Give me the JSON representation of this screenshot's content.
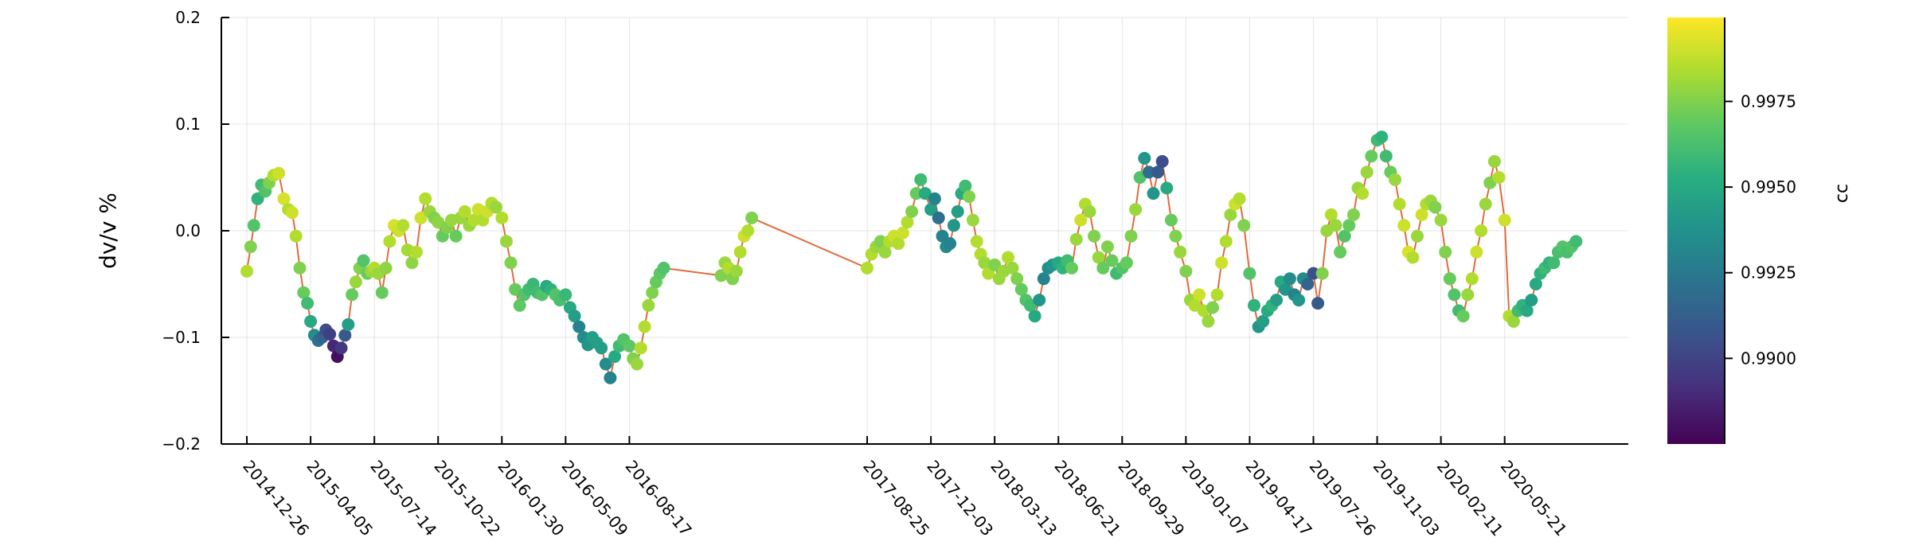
{
  "chart_data": {
    "type": "scatter",
    "ylabel": "dv/v %",
    "ylim": [
      -0.2,
      0.2
    ],
    "yticks": [
      -0.2,
      -0.1,
      0.0,
      0.1,
      0.2
    ],
    "ytick_labels": [
      "−0.2",
      "−0.1",
      "0.0",
      "0.1",
      "0.2"
    ],
    "xlim": [
      "2014-11-16",
      "2020-12-01"
    ],
    "xticks": [
      "2014-12-26",
      "2015-04-05",
      "2015-07-14",
      "2015-10-22",
      "2016-01-30",
      "2016-05-09",
      "2016-08-17",
      "2017-08-25",
      "2017-12-03",
      "2018-03-13",
      "2018-06-21",
      "2018-09-29",
      "2019-01-07",
      "2019-04-17",
      "2019-07-26",
      "2019-11-03",
      "2020-02-11",
      "2020-05-21"
    ],
    "grid": true,
    "line_color": "#e26a3b",
    "colormap": "viridis",
    "colorbar": {
      "label": "cc",
      "range": [
        0.9875,
        0.99995
      ],
      "ticks": [
        0.99,
        0.9925,
        0.995,
        0.9975
      ],
      "tick_labels": [
        "0.9900",
        "0.9925",
        "0.9950",
        "0.9975"
      ]
    },
    "series": [
      {
        "x": [
          "2014-12-26",
          "2015-01-01",
          "2015-01-06",
          "2015-01-12",
          "2015-01-18",
          "2015-01-24",
          "2015-01-30",
          "2015-02-06",
          "2015-02-14",
          "2015-02-22",
          "2015-03-01",
          "2015-03-07",
          "2015-03-13",
          "2015-03-19",
          "2015-03-25",
          "2015-03-31",
          "2015-04-05",
          "2015-04-11",
          "2015-04-17",
          "2015-04-23",
          "2015-04-29",
          "2015-05-05",
          "2015-05-11",
          "2015-05-17",
          "2015-05-23",
          "2015-05-29",
          "2015-06-03",
          "2015-06-09",
          "2015-06-15",
          "2015-06-21",
          "2015-06-27",
          "2015-07-03",
          "2015-07-09",
          "2015-07-14",
          "2015-07-20",
          "2015-07-26",
          "2015-08-01",
          "2015-08-07",
          "2015-08-14",
          "2015-08-21",
          "2015-08-28",
          "2015-09-04",
          "2015-09-11",
          "2015-09-18",
          "2015-09-25",
          "2015-10-02",
          "2015-10-09",
          "2015-10-16",
          "2015-10-22",
          "2015-10-29",
          "2015-11-05",
          "2015-11-12",
          "2015-11-19",
          "2015-11-26",
          "2015-12-03",
          "2015-12-10",
          "2015-12-17",
          "2015-12-24",
          "2015-12-31",
          "2016-01-07",
          "2016-01-14",
          "2016-01-21",
          "2016-01-30",
          "2016-02-06",
          "2016-02-13",
          "2016-02-20",
          "2016-02-27",
          "2016-03-05",
          "2016-03-12",
          "2016-03-19",
          "2016-03-26",
          "2016-04-02",
          "2016-04-09",
          "2016-04-16",
          "2016-04-23",
          "2016-04-30",
          "2016-05-09",
          "2016-05-16",
          "2016-05-23",
          "2016-05-30",
          "2016-06-06",
          "2016-06-13",
          "2016-06-20",
          "2016-06-27",
          "2016-07-04",
          "2016-07-11",
          "2016-07-18",
          "2016-07-25",
          "2016-08-01",
          "2016-08-08",
          "2016-08-17",
          "2016-08-23",
          "2016-08-29",
          "2016-09-04",
          "2016-09-10",
          "2016-09-16",
          "2016-09-22",
          "2016-09-28",
          "2016-10-04",
          "2016-10-10"
        ],
        "y": [
          -0.038,
          -0.015,
          0.005,
          0.03,
          0.043,
          0.037,
          0.045,
          0.052,
          0.054,
          0.03,
          0.02,
          0.017,
          -0.005,
          -0.035,
          -0.058,
          -0.068,
          -0.085,
          -0.098,
          -0.103,
          -0.1,
          -0.093,
          -0.097,
          -0.108,
          -0.118,
          -0.11,
          -0.098,
          -0.088,
          -0.06,
          -0.048,
          -0.035,
          -0.028,
          -0.04,
          -0.038,
          -0.035,
          -0.04,
          -0.058,
          -0.035,
          -0.01,
          0.005,
          0.0,
          0.005,
          -0.018,
          -0.03,
          -0.02,
          0.012,
          0.03,
          0.018,
          0.012,
          0.008,
          -0.005,
          0.003,
          0.01,
          -0.005,
          0.012,
          0.018,
          0.005,
          0.01,
          0.02,
          0.01,
          0.018,
          0.026,
          0.022,
          0.012,
          -0.01,
          -0.03,
          -0.055,
          -0.07,
          -0.06,
          -0.055,
          -0.05,
          -0.058,
          -0.06,
          -0.052,
          -0.055,
          -0.06,
          -0.065,
          -0.06,
          -0.072,
          -0.08,
          -0.09,
          -0.1,
          -0.107,
          -0.1,
          -0.105,
          -0.11,
          -0.125,
          -0.138,
          -0.118,
          -0.108,
          -0.102,
          -0.108,
          -0.12,
          -0.125,
          -0.11,
          -0.09,
          -0.07,
          -0.058,
          -0.048,
          -0.04,
          -0.035
        ],
        "cc": [
          0.9985,
          0.9975,
          0.9965,
          0.9955,
          0.996,
          0.9965,
          0.9975,
          0.9985,
          0.999,
          0.9992,
          0.9985,
          0.999,
          0.9985,
          0.9975,
          0.997,
          0.996,
          0.995,
          0.9935,
          0.992,
          0.9915,
          0.9905,
          0.9898,
          0.9888,
          0.988,
          0.9895,
          0.991,
          0.9945,
          0.997,
          0.998,
          0.9975,
          0.9965,
          0.997,
          0.998,
          0.9985,
          0.998,
          0.997,
          0.9978,
          0.9985,
          0.9992,
          0.999,
          0.9985,
          0.9982,
          0.9978,
          0.9985,
          0.999,
          0.9985,
          0.998,
          0.9975,
          0.9978,
          0.997,
          0.9975,
          0.998,
          0.997,
          0.998,
          0.9985,
          0.998,
          0.9985,
          0.999,
          0.9985,
          0.999,
          0.9985,
          0.998,
          0.9985,
          0.998,
          0.9975,
          0.997,
          0.9968,
          0.9965,
          0.996,
          0.9958,
          0.996,
          0.9965,
          0.995,
          0.9955,
          0.9965,
          0.9962,
          0.9958,
          0.995,
          0.9945,
          0.993,
          0.9935,
          0.994,
          0.9945,
          0.9945,
          0.9945,
          0.9935,
          0.993,
          0.995,
          0.996,
          0.9965,
          0.9968,
          0.9975,
          0.998,
          0.9985,
          0.9985,
          0.998,
          0.9975,
          0.997,
          0.9968,
          0.9965
        ]
      },
      {
        "x": [
          "2017-01-08",
          "2017-01-14",
          "2017-01-20",
          "2017-01-26",
          "2017-02-01",
          "2017-02-07",
          "2017-02-13",
          "2017-02-19",
          "2017-02-25"
        ],
        "y": [
          -0.042,
          -0.03,
          -0.035,
          -0.045,
          -0.038,
          -0.02,
          -0.005,
          0.0,
          0.012
        ],
        "cc": [
          0.9975,
          0.998,
          0.9985,
          0.9975,
          0.998,
          0.9985,
          0.999,
          0.9985,
          0.9975
        ]
      },
      {
        "x": [
          "2017-08-25",
          "2017-09-01",
          "2017-09-08",
          "2017-09-15",
          "2017-09-22",
          "2017-09-29",
          "2017-10-06",
          "2017-10-13",
          "2017-10-20",
          "2017-10-27",
          "2017-11-03",
          "2017-11-10",
          "2017-11-17",
          "2017-11-24",
          "2017-12-03",
          "2017-12-09",
          "2017-12-15",
          "2017-12-21",
          "2017-12-27",
          "2018-01-02",
          "2018-01-08",
          "2018-01-14",
          "2018-01-20",
          "2018-01-26",
          "2018-02-01",
          "2018-02-07",
          "2018-02-13",
          "2018-02-19",
          "2018-02-25",
          "2018-03-03",
          "2018-03-13",
          "2018-03-20",
          "2018-03-27",
          "2018-04-03",
          "2018-04-10",
          "2018-04-17",
          "2018-04-24",
          "2018-05-01",
          "2018-05-08",
          "2018-05-15",
          "2018-05-22",
          "2018-05-29",
          "2018-06-05",
          "2018-06-12",
          "2018-06-21",
          "2018-06-28",
          "2018-07-05",
          "2018-07-12",
          "2018-07-19",
          "2018-07-26",
          "2018-08-02",
          "2018-08-09",
          "2018-08-16",
          "2018-08-23",
          "2018-08-30",
          "2018-09-06",
          "2018-09-13",
          "2018-09-20",
          "2018-09-29",
          "2018-10-06",
          "2018-10-13",
          "2018-10-20",
          "2018-10-27",
          "2018-11-03",
          "2018-11-10",
          "2018-11-17",
          "2018-11-24",
          "2018-12-01",
          "2018-12-08",
          "2018-12-15",
          "2018-12-22",
          "2018-12-29",
          "2019-01-07",
          "2019-01-14",
          "2019-01-21",
          "2019-01-28",
          "2019-02-04",
          "2019-02-11",
          "2019-02-18",
          "2019-02-25",
          "2019-03-04",
          "2019-03-11",
          "2019-03-18",
          "2019-03-25",
          "2019-04-01",
          "2019-04-08",
          "2019-04-17",
          "2019-04-24",
          "2019-05-01",
          "2019-05-08",
          "2019-05-15",
          "2019-05-22",
          "2019-05-29",
          "2019-06-05",
          "2019-06-12",
          "2019-06-19",
          "2019-06-26",
          "2019-07-03",
          "2019-07-10",
          "2019-07-17",
          "2019-07-26",
          "2019-08-02",
          "2019-08-09",
          "2019-08-16",
          "2019-08-23",
          "2019-08-30",
          "2019-09-06",
          "2019-09-13",
          "2019-09-20",
          "2019-09-27",
          "2019-10-04",
          "2019-10-11",
          "2019-10-18",
          "2019-10-25",
          "2019-11-03",
          "2019-11-10",
          "2019-11-17",
          "2019-11-24",
          "2019-12-01",
          "2019-12-08",
          "2019-12-15",
          "2019-12-22",
          "2019-12-29",
          "2020-01-05",
          "2020-01-12",
          "2020-01-19",
          "2020-01-26",
          "2020-02-02",
          "2020-02-11",
          "2020-02-18",
          "2020-02-25",
          "2020-03-03",
          "2020-03-10",
          "2020-03-17",
          "2020-03-24",
          "2020-03-31",
          "2020-04-07",
          "2020-04-14",
          "2020-04-21",
          "2020-04-28",
          "2020-05-05",
          "2020-05-12",
          "2020-05-21",
          "2020-05-28",
          "2020-06-04",
          "2020-06-11",
          "2020-06-18",
          "2020-06-25",
          "2020-07-02",
          "2020-07-09",
          "2020-07-16",
          "2020-07-23",
          "2020-07-30",
          "2020-08-06",
          "2020-08-13",
          "2020-08-20",
          "2020-08-27",
          "2020-09-03",
          "2020-09-10"
        ],
        "y": [
          -0.035,
          -0.022,
          -0.015,
          -0.01,
          -0.02,
          -0.01,
          -0.005,
          -0.012,
          -0.002,
          0.008,
          0.018,
          0.035,
          0.048,
          0.035,
          0.02,
          0.03,
          0.012,
          -0.005,
          -0.015,
          -0.012,
          0.005,
          0.018,
          0.035,
          0.042,
          0.032,
          0.01,
          -0.01,
          -0.022,
          -0.03,
          -0.04,
          -0.032,
          -0.045,
          -0.038,
          -0.025,
          -0.035,
          -0.045,
          -0.055,
          -0.065,
          -0.07,
          -0.08,
          -0.065,
          -0.045,
          -0.035,
          -0.032,
          -0.03,
          -0.035,
          -0.028,
          -0.035,
          -0.008,
          0.01,
          0.025,
          0.018,
          -0.005,
          -0.025,
          -0.035,
          -0.015,
          -0.028,
          -0.04,
          -0.035,
          -0.03,
          -0.005,
          0.02,
          0.05,
          0.068,
          0.055,
          0.035,
          0.055,
          0.065,
          0.04,
          0.01,
          -0.005,
          -0.02,
          -0.038,
          -0.065,
          -0.07,
          -0.06,
          -0.075,
          -0.085,
          -0.072,
          -0.06,
          -0.03,
          -0.01,
          0.015,
          0.025,
          0.03,
          0.005,
          -0.04,
          -0.07,
          -0.09,
          -0.085,
          -0.075,
          -0.07,
          -0.065,
          -0.048,
          -0.055,
          -0.045,
          -0.06,
          -0.065,
          -0.045,
          -0.05,
          -0.04,
          -0.068,
          -0.04,
          0.0,
          0.015,
          0.005,
          -0.02,
          -0.005,
          0.005,
          0.015,
          0.04,
          0.035,
          0.055,
          0.07,
          0.085,
          0.088,
          0.07,
          0.055,
          0.048,
          0.025,
          0.005,
          -0.02,
          -0.025,
          -0.005,
          0.015,
          0.025,
          0.028,
          0.022,
          0.01,
          -0.02,
          -0.045,
          -0.06,
          -0.075,
          -0.08,
          -0.06,
          -0.045,
          -0.02,
          0.0,
          0.025,
          0.045,
          0.065,
          0.05,
          0.01,
          -0.08,
          -0.085,
          -0.075,
          -0.07,
          -0.075,
          -0.065,
          -0.05,
          -0.04,
          -0.035,
          -0.03,
          -0.03,
          -0.02,
          -0.015,
          -0.02,
          -0.015,
          -0.01
        ],
        "cc": [
          0.9985,
          0.9985,
          0.998,
          0.9975,
          0.998,
          0.9985,
          0.999,
          0.9985,
          0.999,
          0.9985,
          0.9975,
          0.997,
          0.996,
          0.995,
          0.9945,
          0.993,
          0.992,
          0.993,
          0.9935,
          0.993,
          0.994,
          0.9945,
          0.995,
          0.996,
          0.9975,
          0.998,
          0.9985,
          0.9985,
          0.998,
          0.9985,
          0.9975,
          0.998,
          0.998,
          0.9985,
          0.998,
          0.9975,
          0.997,
          0.9965,
          0.996,
          0.995,
          0.994,
          0.993,
          0.9935,
          0.994,
          0.995,
          0.9955,
          0.996,
          0.997,
          0.998,
          0.999,
          0.9985,
          0.998,
          0.9975,
          0.998,
          0.997,
          0.9975,
          0.997,
          0.996,
          0.9965,
          0.997,
          0.9975,
          0.998,
          0.9965,
          0.994,
          0.992,
          0.994,
          0.991,
          0.9905,
          0.995,
          0.997,
          0.9975,
          0.998,
          0.9975,
          0.998,
          0.9985,
          0.999,
          0.9985,
          0.998,
          0.9975,
          0.9985,
          0.999,
          0.9985,
          0.998,
          0.999,
          0.9985,
          0.9975,
          0.9965,
          0.9955,
          0.994,
          0.9945,
          0.995,
          0.9955,
          0.9945,
          0.995,
          0.994,
          0.9935,
          0.993,
          0.994,
          0.9935,
          0.9915,
          0.9905,
          0.991,
          0.9975,
          0.998,
          0.9985,
          0.998,
          0.997,
          0.9965,
          0.997,
          0.9975,
          0.998,
          0.9985,
          0.998,
          0.997,
          0.996,
          0.9955,
          0.996,
          0.997,
          0.998,
          0.9985,
          0.999,
          0.9992,
          0.9985,
          0.998,
          0.999,
          0.9985,
          0.998,
          0.9975,
          0.998,
          0.9975,
          0.997,
          0.9965,
          0.996,
          0.997,
          0.998,
          0.9985,
          0.999,
          0.9985,
          0.998,
          0.9975,
          0.998,
          0.9985,
          0.999,
          0.9985,
          0.998,
          0.996,
          0.9955,
          0.995,
          0.9945,
          0.995,
          0.9955,
          0.996,
          0.9955,
          0.996,
          0.9962,
          0.9965,
          0.9962,
          0.9965,
          0.996,
          0.9962
        ]
      }
    ]
  }
}
